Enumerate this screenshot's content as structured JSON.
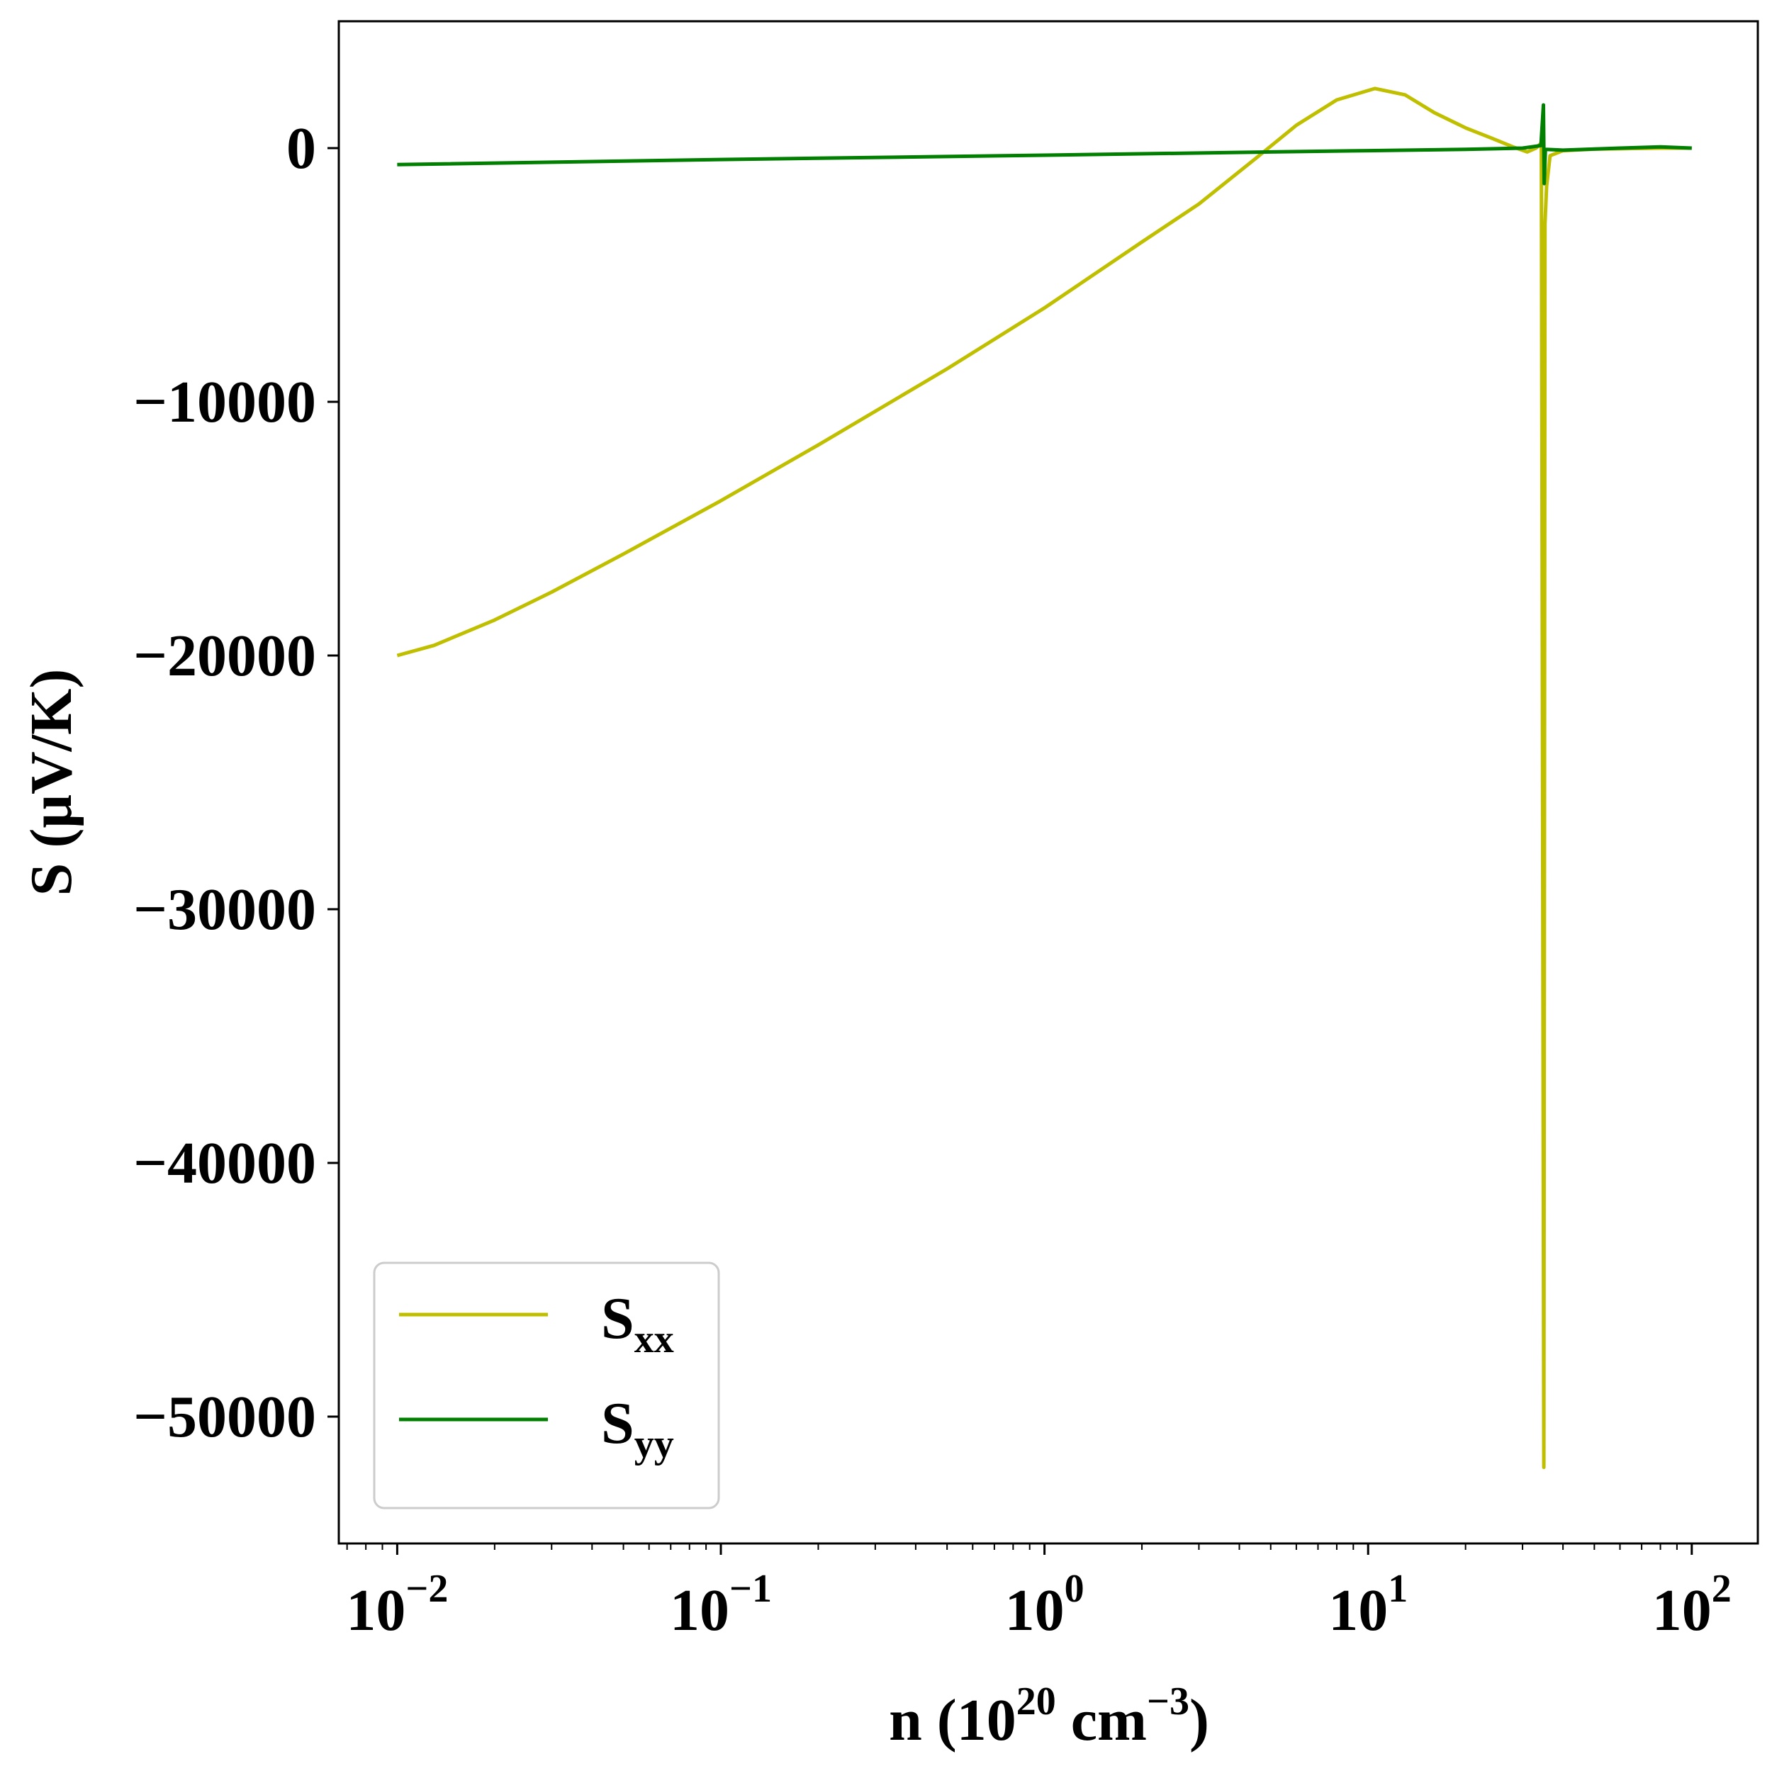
{
  "chart_data": {
    "type": "line",
    "title": "",
    "xlabel": {
      "base": "n (10",
      "sup1": "20",
      "mid": " cm",
      "sup2": "−3",
      "end": ")"
    },
    "ylabel": "S (μV/K)",
    "xscale": "log",
    "xlim": [
      0.0066,
      160
    ],
    "ylim": [
      -55000,
      5000
    ],
    "grid": false,
    "legend_position": "lower-left",
    "x_ticks": [
      {
        "value": 0.01,
        "base": "10",
        "exp": "−2"
      },
      {
        "value": 0.1,
        "base": "10",
        "exp": "−1"
      },
      {
        "value": 1,
        "base": "10",
        "exp": "0"
      },
      {
        "value": 10,
        "base": "10",
        "exp": "1"
      },
      {
        "value": 100,
        "base": "10",
        "exp": "2"
      }
    ],
    "y_ticks": [
      {
        "value": 0,
        "label": "0"
      },
      {
        "value": -10000,
        "label": "−10000"
      },
      {
        "value": -20000,
        "label": "−20000"
      },
      {
        "value": -30000,
        "label": "−30000"
      },
      {
        "value": -40000,
        "label": "−40000"
      },
      {
        "value": -50000,
        "label": "−50000"
      }
    ],
    "series": [
      {
        "name": {
          "base": "S",
          "sub": "xx"
        },
        "color": "#bfbf00",
        "points": [
          [
            0.01,
            -20000
          ],
          [
            0.013,
            -19600
          ],
          [
            0.02,
            -18600
          ],
          [
            0.03,
            -17500
          ],
          [
            0.05,
            -16000
          ],
          [
            0.1,
            -13900
          ],
          [
            0.2,
            -11700
          ],
          [
            0.5,
            -8700
          ],
          [
            1,
            -6300
          ],
          [
            2,
            -3700
          ],
          [
            3,
            -2200
          ],
          [
            4.5,
            -400
          ],
          [
            6,
            900
          ],
          [
            8,
            1900
          ],
          [
            10.5,
            2350
          ],
          [
            13,
            2100
          ],
          [
            16,
            1400
          ],
          [
            20,
            800
          ],
          [
            24,
            400
          ],
          [
            28,
            50
          ],
          [
            31,
            -150
          ],
          [
            33,
            0
          ],
          [
            34.3,
            200
          ],
          [
            34.9,
            -52000
          ],
          [
            35.2,
            -3000
          ],
          [
            35.6,
            -1500
          ],
          [
            36.5,
            -300
          ],
          [
            40,
            -100
          ],
          [
            50,
            -40
          ],
          [
            80,
            0
          ],
          [
            100,
            0
          ]
        ]
      },
      {
        "name": {
          "base": "S",
          "sub": "yy"
        },
        "color": "#007f00",
        "points": [
          [
            0.01,
            -650
          ],
          [
            0.1,
            -450
          ],
          [
            1,
            -280
          ],
          [
            5,
            -150
          ],
          [
            10,
            -100
          ],
          [
            20,
            -50
          ],
          [
            30,
            0
          ],
          [
            34.2,
            100
          ],
          [
            34.8,
            1700
          ],
          [
            35.0,
            -1400
          ],
          [
            35.3,
            -50
          ],
          [
            40,
            -80
          ],
          [
            60,
            0
          ],
          [
            80,
            50
          ],
          [
            100,
            0
          ]
        ]
      }
    ]
  }
}
